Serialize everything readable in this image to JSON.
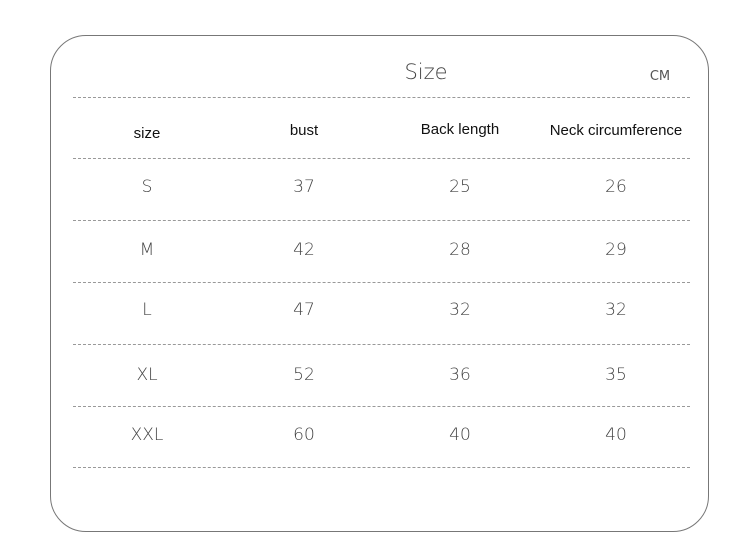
{
  "title": "Size",
  "unit": "CM",
  "headers": [
    "size",
    "bust",
    "Back length",
    "Neck circumference"
  ],
  "rows": [
    [
      "S",
      "37",
      "25",
      "26"
    ],
    [
      "M",
      "42",
      "28",
      "29"
    ],
    [
      "L",
      "47",
      "32",
      "32"
    ],
    [
      "XL",
      "52",
      "36",
      "35"
    ],
    [
      "XXL",
      "60",
      "40",
      "40"
    ]
  ]
}
